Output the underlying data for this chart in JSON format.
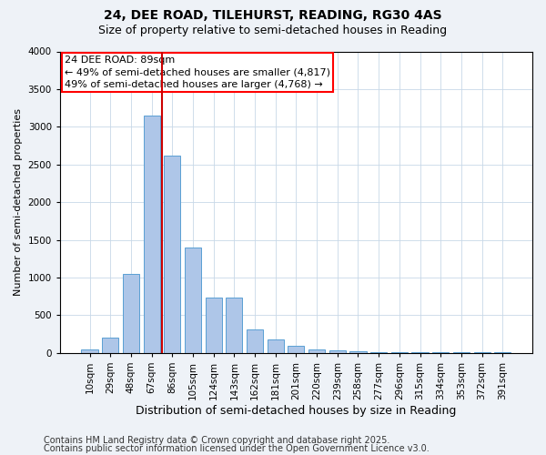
{
  "title1": "24, DEE ROAD, TILEHURST, READING, RG30 4AS",
  "title2": "Size of property relative to semi-detached houses in Reading",
  "xlabel": "Distribution of semi-detached houses by size in Reading",
  "ylabel": "Number of semi-detached properties",
  "categories": [
    "10sqm",
    "29sqm",
    "48sqm",
    "67sqm",
    "86sqm",
    "105sqm",
    "124sqm",
    "143sqm",
    "162sqm",
    "181sqm",
    "201sqm",
    "220sqm",
    "239sqm",
    "258sqm",
    "277sqm",
    "296sqm",
    "315sqm",
    "334sqm",
    "353sqm",
    "372sqm",
    "391sqm"
  ],
  "values": [
    50,
    200,
    1050,
    3150,
    2620,
    1400,
    730,
    730,
    310,
    175,
    100,
    50,
    30,
    20,
    10,
    10,
    5,
    5,
    5,
    5,
    5
  ],
  "bar_color": "#aec6e8",
  "bar_edge_color": "#5a9fd4",
  "vline_color": "#cc0000",
  "vline_x": 3.5,
  "ylim": [
    0,
    4000
  ],
  "yticks": [
    0,
    500,
    1000,
    1500,
    2000,
    2500,
    3000,
    3500,
    4000
  ],
  "annotation_title": "24 DEE ROAD: 89sqm",
  "annotation_line1": "← 49% of semi-detached houses are smaller (4,817)",
  "annotation_line2": "49% of semi-detached houses are larger (4,768) →",
  "footer1": "Contains HM Land Registry data © Crown copyright and database right 2025.",
  "footer2": "Contains public sector information licensed under the Open Government Licence v3.0.",
  "bg_color": "#eef2f7",
  "plot_bg_color": "#ffffff",
  "grid_color": "#c8d8e8",
  "title1_fontsize": 10,
  "title2_fontsize": 9,
  "ylabel_fontsize": 8,
  "xlabel_fontsize": 9,
  "tick_fontsize": 7.5,
  "annotation_fontsize": 8,
  "footer_fontsize": 7
}
